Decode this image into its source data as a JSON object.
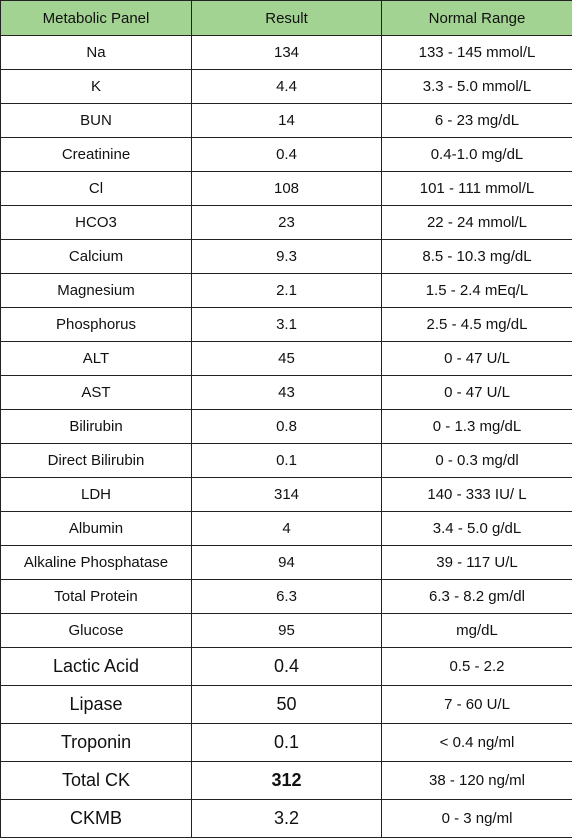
{
  "table": {
    "header": [
      "Metabolic Panel",
      "Result",
      "Normal Range"
    ],
    "rows": [
      [
        "Na",
        "134",
        "133 - 145 mmol/L"
      ],
      [
        "K",
        "4.4",
        "3.3 - 5.0 mmol/L"
      ],
      [
        "BUN",
        "14",
        "6 - 23 mg/dL"
      ],
      [
        "Creatinine",
        "0.4",
        "0.4-1.0 mg/dL"
      ],
      [
        "Cl",
        "108",
        "101 - 111 mmol/L"
      ],
      [
        "HCO3",
        "23",
        "22 - 24 mmol/L"
      ],
      [
        "Calcium",
        "9.3",
        "8.5 - 10.3 mg/dL"
      ],
      [
        "Magnesium",
        "2.1",
        "1.5 - 2.4 mEq/L"
      ],
      [
        "Phosphorus",
        "3.1",
        "2.5 - 4.5 mg/dL"
      ],
      [
        "ALT",
        "45",
        "0 - 47 U/L"
      ],
      [
        "AST",
        "43",
        "0 - 47 U/L"
      ],
      [
        "Bilirubin",
        "0.8",
        "0 - 1.3 mg/dL"
      ],
      [
        "Direct Bilirubin",
        "0.1",
        "0 - 0.3 mg/dl"
      ],
      [
        "LDH",
        "314",
        "140 - 333 IU/ L"
      ],
      [
        "Albumin",
        "4",
        "3.4 - 5.0 g/dL"
      ],
      [
        "Alkaline Phosphatase",
        "94",
        "39 - 117 U/L"
      ],
      [
        "Total Protein",
        "6.3",
        "6.3 - 8.2 gm/dl"
      ],
      [
        "Glucose",
        "95",
        "mg/dL"
      ],
      [
        "Lactic Acid",
        "0.4",
        "0.5 - 2.2"
      ],
      [
        "Lipase",
        "50",
        "7 - 60 U/L"
      ],
      [
        "Troponin",
        "0.1",
        "< 0.4 ng/ml"
      ],
      [
        "Total CK",
        "312",
        "38 - 120 ng/ml"
      ],
      [
        "CKMB",
        "3.2",
        "0 - 3 ng/ml"
      ]
    ]
  }
}
